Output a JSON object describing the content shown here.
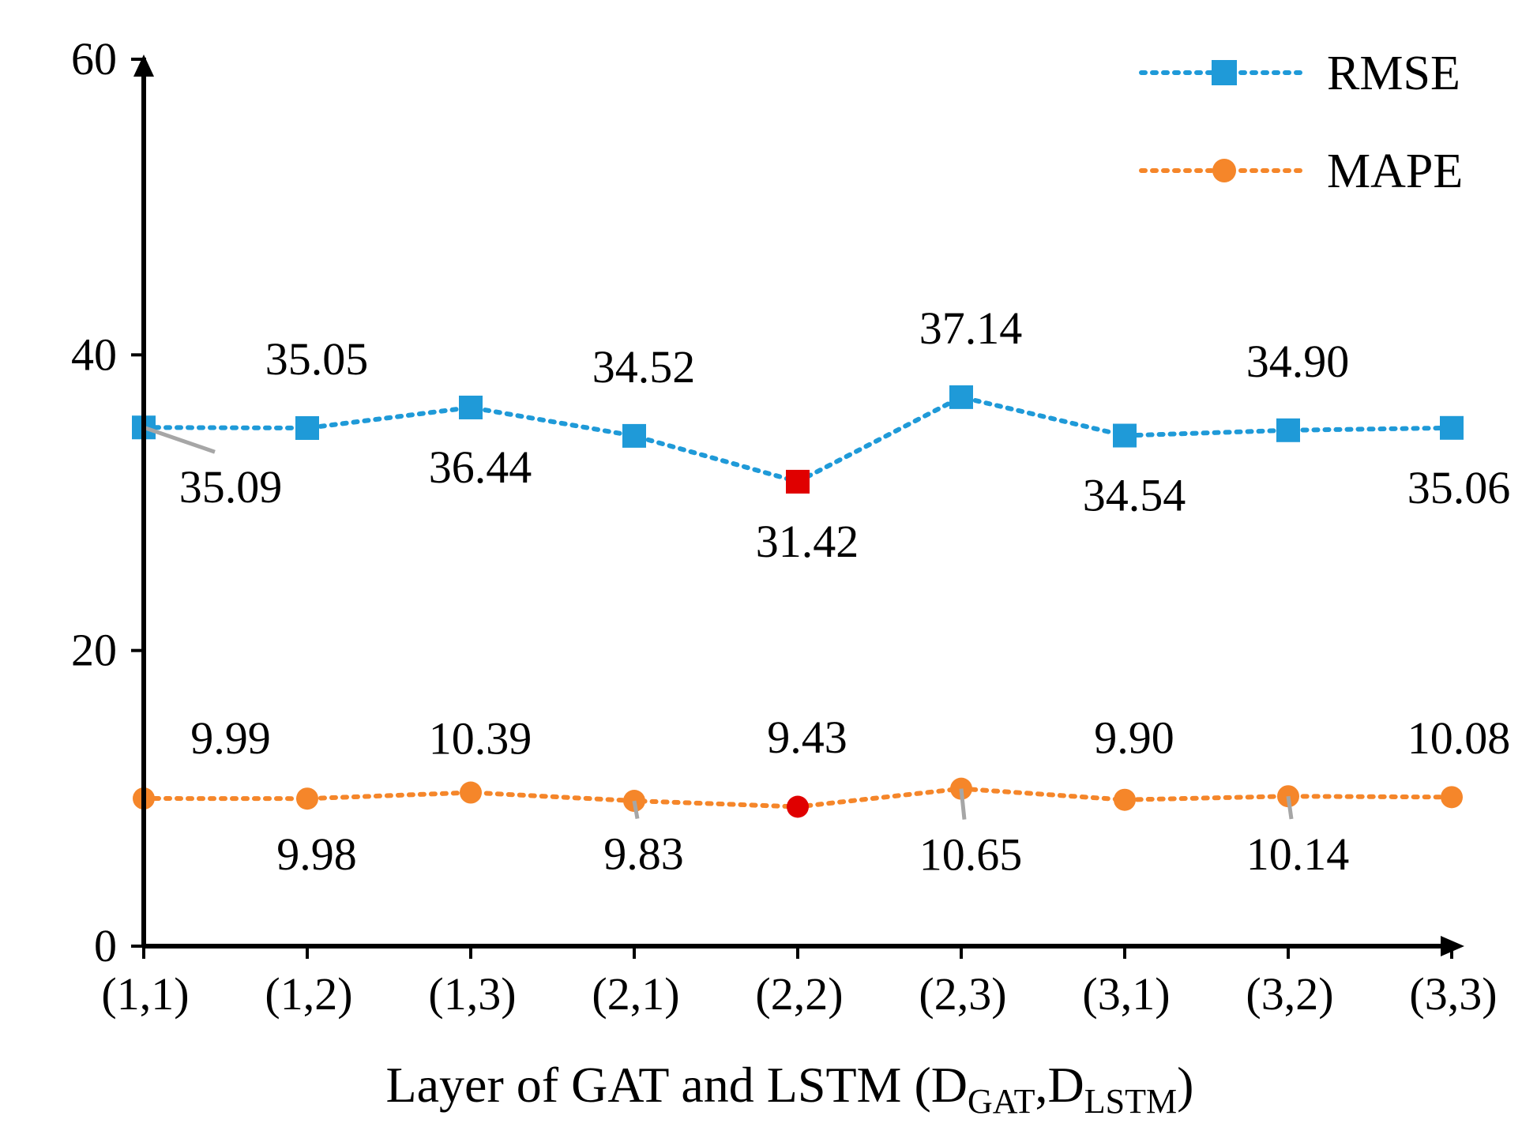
{
  "chart_data": {
    "type": "line",
    "title": "",
    "xlabel": {
      "prefix": "Layer of GAT and LSTM (",
      "d1": "D",
      "sub1": "GAT",
      "sep": ",",
      "d2": "D",
      "sub2": "LSTM",
      "suffix": ")"
    },
    "ylabel": "",
    "ylim": [
      0,
      60
    ],
    "yticks": [
      "0",
      "20",
      "40",
      "60"
    ],
    "categories": [
      "(1,1)",
      "(1,2)",
      "(1,3)",
      "(2,1)",
      "(2,2)",
      "(2,3)",
      "(3,1)",
      "(3,2)",
      "(3,3)"
    ],
    "grid": false,
    "legend_position": "top-right",
    "highlight_index": 4,
    "highlight_color": "#e00000",
    "series": [
      {
        "name": "RMSE",
        "color": "#1f9ad8",
        "marker": "square",
        "line_style": "dotted",
        "values": [
          35.09,
          35.05,
          36.44,
          34.52,
          31.42,
          37.14,
          34.54,
          34.9,
          35.06
        ],
        "labels": [
          "35.09",
          "35.05",
          "36.44",
          "34.52",
          "31.42",
          "37.14",
          "34.54",
          "34.90",
          "35.06"
        ],
        "label_side": [
          "below",
          "above",
          "below",
          "above",
          "below",
          "above",
          "below",
          "above",
          "below"
        ]
      },
      {
        "name": "MAPE",
        "color": "#f5862a",
        "marker": "circle",
        "line_style": "dotted",
        "values": [
          9.99,
          9.98,
          10.39,
          9.83,
          9.43,
          10.65,
          9.9,
          10.14,
          10.08
        ],
        "labels": [
          "9.99",
          "9.98",
          "10.39",
          "9.83",
          "9.43",
          "10.65",
          "9.90",
          "10.14",
          "10.08"
        ],
        "label_side": [
          "above",
          "below",
          "above",
          "below",
          "above",
          "below",
          "above",
          "below",
          "above"
        ]
      }
    ]
  }
}
